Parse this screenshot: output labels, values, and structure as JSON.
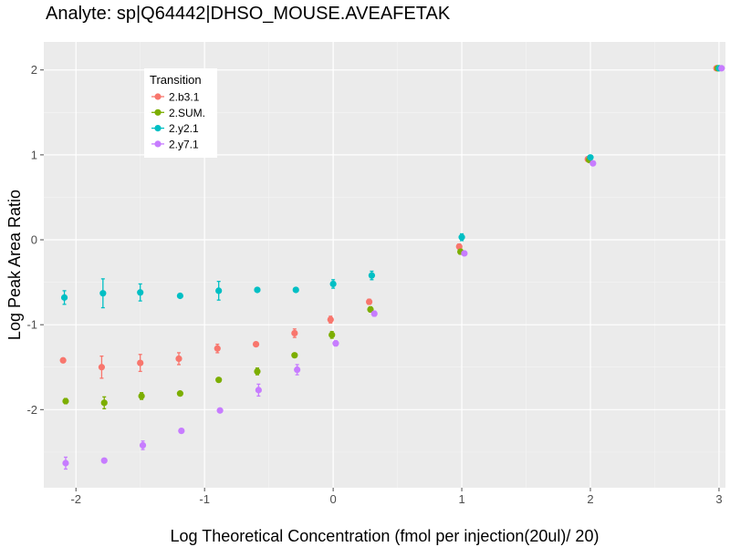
{
  "chart_data": {
    "type": "scatter",
    "title": "Analyte: sp|Q64442|DHSO_MOUSE.AVEAFETAK",
    "xlabel": "Log Theoretical Concentration (fmol per injection(20ul)/ 20)",
    "ylabel": "Log Peak Area Ratio",
    "xlim": [
      -2.25,
      3.05
    ],
    "ylim": [
      -2.92,
      2.33
    ],
    "x_ticks": [
      -2,
      -1,
      0,
      1,
      2,
      3
    ],
    "x_tick_labels": [
      "-2",
      "-1",
      "0",
      "1",
      "2",
      "3"
    ],
    "x_minor_ticks": [
      -1.5,
      -0.5,
      0.5,
      1.5,
      2.5
    ],
    "y_ticks": [
      -2,
      -1,
      0,
      1,
      2
    ],
    "y_tick_labels": [
      "-2",
      "-1",
      "0",
      "1",
      "2"
    ],
    "y_minor_ticks": [
      -2.5,
      -1.5,
      -0.5,
      0.5,
      1.5
    ],
    "grid": true,
    "legend": {
      "title": "Transition",
      "position": "top-left"
    },
    "colors": {
      "panel": "#ebebeb",
      "grid_major": "#ffffff",
      "grid_minor": "#f5f5f5",
      "tick": "#4d4d4d"
    },
    "series": [
      {
        "name": "2.b3.1",
        "color": "#f8766d",
        "points": [
          {
            "x": -2.1,
            "y": -1.42,
            "err": 0
          },
          {
            "x": -1.8,
            "y": -1.5,
            "err": 0.13
          },
          {
            "x": -1.5,
            "y": -1.45,
            "err": 0.1
          },
          {
            "x": -1.2,
            "y": -1.4,
            "err": 0.07
          },
          {
            "x": -0.9,
            "y": -1.28,
            "err": 0.05
          },
          {
            "x": -0.6,
            "y": -1.23,
            "err": 0
          },
          {
            "x": -0.3,
            "y": -1.1,
            "err": 0.05
          },
          {
            "x": -0.02,
            "y": -0.94,
            "err": 0.04
          },
          {
            "x": 0.28,
            "y": -0.73,
            "err": 0.03
          },
          {
            "x": 0.98,
            "y": -0.08,
            "err": 0.03
          },
          {
            "x": 1.98,
            "y": 0.95,
            "err": 0
          },
          {
            "x": 2.98,
            "y": 2.02,
            "err": 0
          }
        ]
      },
      {
        "name": "2.SUM.",
        "color": "#7cae00",
        "points": [
          {
            "x": -2.08,
            "y": -1.9,
            "err": 0.03
          },
          {
            "x": -1.78,
            "y": -1.92,
            "err": 0.07
          },
          {
            "x": -1.49,
            "y": -1.84,
            "err": 0.04
          },
          {
            "x": -1.19,
            "y": -1.81,
            "err": 0
          },
          {
            "x": -0.89,
            "y": -1.65,
            "err": 0
          },
          {
            "x": -0.59,
            "y": -1.55,
            "err": 0.04
          },
          {
            "x": -0.3,
            "y": -1.36,
            "err": 0
          },
          {
            "x": -0.01,
            "y": -1.12,
            "err": 0.04
          },
          {
            "x": 0.29,
            "y": -0.82,
            "err": 0.03
          },
          {
            "x": 0.99,
            "y": -0.14,
            "err": 0.03
          },
          {
            "x": 1.99,
            "y": 0.94,
            "err": 0
          },
          {
            "x": 2.99,
            "y": 2.02,
            "err": 0
          }
        ]
      },
      {
        "name": "2.y2.1",
        "color": "#00bfc4",
        "points": [
          {
            "x": -2.09,
            "y": -0.68,
            "err": 0.08
          },
          {
            "x": -1.79,
            "y": -0.63,
            "err": 0.17
          },
          {
            "x": -1.5,
            "y": -0.62,
            "err": 0.1
          },
          {
            "x": -1.19,
            "y": -0.66,
            "err": 0
          },
          {
            "x": -0.89,
            "y": -0.6,
            "err": 0.11
          },
          {
            "x": -0.59,
            "y": -0.59,
            "err": 0
          },
          {
            "x": -0.29,
            "y": -0.59,
            "err": 0
          },
          {
            "x": 0.0,
            "y": -0.52,
            "err": 0.05
          },
          {
            "x": 0.3,
            "y": -0.42,
            "err": 0.05
          },
          {
            "x": 1.0,
            "y": 0.03,
            "err": 0.04
          },
          {
            "x": 2.0,
            "y": 0.97,
            "err": 0
          },
          {
            "x": 3.0,
            "y": 2.02,
            "err": 0
          }
        ]
      },
      {
        "name": "2.y7.1",
        "color": "#c77cff",
        "points": [
          {
            "x": -2.08,
            "y": -2.63,
            "err": 0.07
          },
          {
            "x": -1.78,
            "y": -2.6,
            "err": 0
          },
          {
            "x": -1.48,
            "y": -2.42,
            "err": 0.05
          },
          {
            "x": -1.18,
            "y": -2.25,
            "err": 0
          },
          {
            "x": -0.88,
            "y": -2.01,
            "err": 0
          },
          {
            "x": -0.58,
            "y": -1.77,
            "err": 0.07
          },
          {
            "x": -0.28,
            "y": -1.53,
            "err": 0.06
          },
          {
            "x": 0.02,
            "y": -1.22,
            "err": 0.03
          },
          {
            "x": 0.32,
            "y": -0.87,
            "err": 0.03
          },
          {
            "x": 1.02,
            "y": -0.16,
            "err": 0.02
          },
          {
            "x": 2.02,
            "y": 0.9,
            "err": 0
          },
          {
            "x": 3.02,
            "y": 2.02,
            "err": 0
          }
        ]
      }
    ]
  }
}
